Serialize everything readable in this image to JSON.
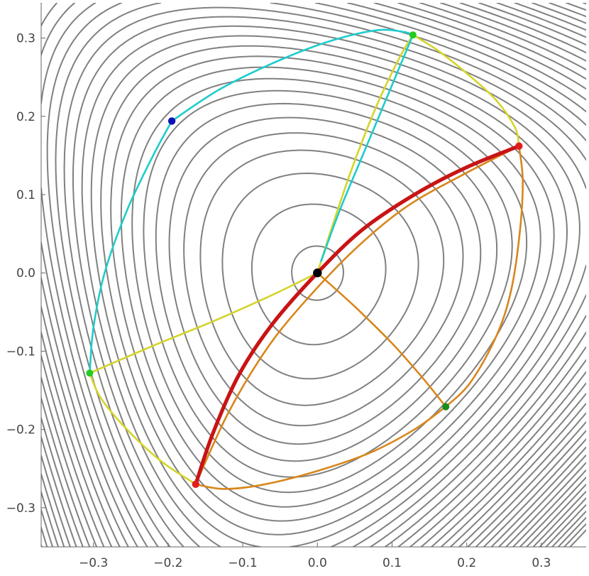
{
  "chart_data": {
    "type": "line",
    "title": "",
    "xlabel": "",
    "ylabel": "",
    "xlim": [
      -0.37,
      0.36
    ],
    "ylim": [
      -0.35,
      0.345
    ],
    "x_ticks": [
      -0.3,
      -0.2,
      -0.1,
      0.0,
      0.1,
      0.2,
      0.3
    ],
    "y_ticks": [
      -0.3,
      -0.2,
      -0.1,
      0.0,
      0.1,
      0.2,
      0.3
    ],
    "x_tick_labels": [
      "−0.3",
      "−0.2",
      "−0.1",
      "0.0",
      "0.1",
      "0.2",
      "0.3"
    ],
    "y_tick_labels": [
      "−0.3",
      "−0.2",
      "−0.1",
      "0.0",
      "0.1",
      "0.2",
      "0.3"
    ],
    "grid": false,
    "legend": "none",
    "background": {
      "kind": "contour",
      "color": "#808080",
      "field": "Henon-Heiles potential x^2/2 + y^2/2 + x^2*y - y^3/3 (rotated)",
      "levels": [
        0.0006,
        0.004,
        0.0085,
        0.013,
        0.017,
        0.021,
        0.025,
        0.029,
        0.033,
        0.037,
        0.041,
        0.045,
        0.049,
        0.053,
        0.057,
        0.061,
        0.065,
        0.069,
        0.073,
        0.077,
        0.081,
        0.085,
        0.089,
        0.093,
        0.097,
        0.101,
        0.105,
        0.109,
        0.113,
        0.117,
        0.121,
        0.125,
        0.129,
        0.133,
        0.137,
        0.141,
        0.145,
        0.149,
        0.153,
        0.157
      ]
    },
    "series": [
      {
        "color": "#d4d42a",
        "width": 2.6,
        "segments": [
          [
            [
              0,
              0
            ],
            [
              0.015,
              0.045
            ],
            [
              0.045,
              0.13
            ],
            [
              0.08,
              0.215
            ],
            [
              0.11,
              0.275
            ],
            [
              0.128,
              0.304
            ]
          ],
          [
            [
              0,
              0
            ],
            [
              -0.06,
              -0.028
            ],
            [
              -0.14,
              -0.062
            ],
            [
              -0.22,
              -0.093
            ],
            [
              -0.305,
              -0.128
            ]
          ],
          [
            [
              0.128,
              0.304
            ],
            [
              0.16,
              0.285
            ],
            [
              0.2,
              0.255
            ],
            [
              0.24,
              0.22
            ],
            [
              0.265,
              0.185
            ],
            [
              0.27,
              0.162
            ]
          ],
          [
            [
              -0.305,
              -0.128
            ],
            [
              -0.29,
              -0.16
            ],
            [
              -0.255,
              -0.2
            ],
            [
              -0.21,
              -0.24
            ],
            [
              -0.163,
              -0.27
            ]
          ]
        ]
      },
      {
        "color": "#1fcccc",
        "width": 2.6,
        "segments": [
          [
            [
              -0.195,
              0.194
            ],
            [
              -0.13,
              0.235
            ],
            [
              -0.05,
              0.272
            ],
            [
              0.02,
              0.297
            ],
            [
              0.08,
              0.31
            ],
            [
              0.115,
              0.308
            ],
            [
              0.128,
              0.304
            ]
          ],
          [
            [
              -0.195,
              0.194
            ],
            [
              -0.22,
              0.15
            ],
            [
              -0.255,
              0.08
            ],
            [
              -0.285,
              0.0
            ],
            [
              -0.3,
              -0.07
            ],
            [
              -0.305,
              -0.128
            ]
          ],
          [
            [
              0.128,
              0.304
            ],
            [
              0.1,
              0.24
            ],
            [
              0.065,
              0.16
            ],
            [
              0.03,
              0.08
            ],
            [
              0.005,
              0.015
            ]
          ]
        ]
      },
      {
        "color": "#d8861a",
        "width": 2.6,
        "segments": [
          [
            [
              0.27,
              0.162
            ],
            [
              0.275,
              0.12
            ],
            [
              0.272,
              0.06
            ],
            [
              0.26,
              -0.02
            ],
            [
              0.24,
              -0.08
            ],
            [
              0.205,
              -0.14
            ],
            [
              0.172,
              -0.171
            ]
          ],
          [
            [
              0.172,
              -0.171
            ],
            [
              0.13,
              -0.2
            ],
            [
              0.07,
              -0.23
            ],
            [
              0.0,
              -0.253
            ],
            [
              -0.07,
              -0.27
            ],
            [
              -0.125,
              -0.276
            ],
            [
              -0.163,
              -0.27
            ]
          ],
          [
            [
              0,
              0
            ],
            [
              0.05,
              -0.043
            ],
            [
              0.1,
              -0.09
            ],
            [
              0.14,
              -0.133
            ],
            [
              0.172,
              -0.171
            ]
          ],
          [
            [
              -0.163,
              -0.27
            ],
            [
              -0.12,
              -0.18
            ],
            [
              -0.07,
              -0.1
            ],
            [
              -0.02,
              -0.04
            ],
            [
              0.05,
              0.03
            ],
            [
              0.12,
              0.085
            ],
            [
              0.2,
              0.128
            ],
            [
              0.27,
              0.162
            ]
          ]
        ]
      },
      {
        "color": "#c81414",
        "width": 5.2,
        "segments": [
          [
            [
              -0.163,
              -0.27
            ],
            [
              -0.14,
              -0.205
            ],
            [
              -0.105,
              -0.13
            ],
            [
              -0.06,
              -0.065
            ],
            [
              0.0,
              0.0
            ],
            [
              0.06,
              0.055
            ],
            [
              0.13,
              0.1
            ],
            [
              0.2,
              0.135
            ],
            [
              0.27,
              0.162
            ]
          ]
        ]
      }
    ],
    "points": [
      {
        "x": 0.0,
        "y": 0.0,
        "color": "#000000",
        "r": 6.2
      },
      {
        "x": -0.195,
        "y": 0.194,
        "color": "#0a14b4",
        "r": 5.2
      },
      {
        "x": 0.128,
        "y": 0.304,
        "color": "#22cc22",
        "r": 5.0
      },
      {
        "x": -0.305,
        "y": -0.128,
        "color": "#22cc22",
        "r": 5.0
      },
      {
        "x": 0.172,
        "y": -0.171,
        "color": "#198c19",
        "r": 5.0
      },
      {
        "x": 0.27,
        "y": 0.162,
        "color": "#e01e1e",
        "r": 5.2
      },
      {
        "x": -0.163,
        "y": -0.27,
        "color": "#e01e1e",
        "r": 5.2
      }
    ]
  }
}
